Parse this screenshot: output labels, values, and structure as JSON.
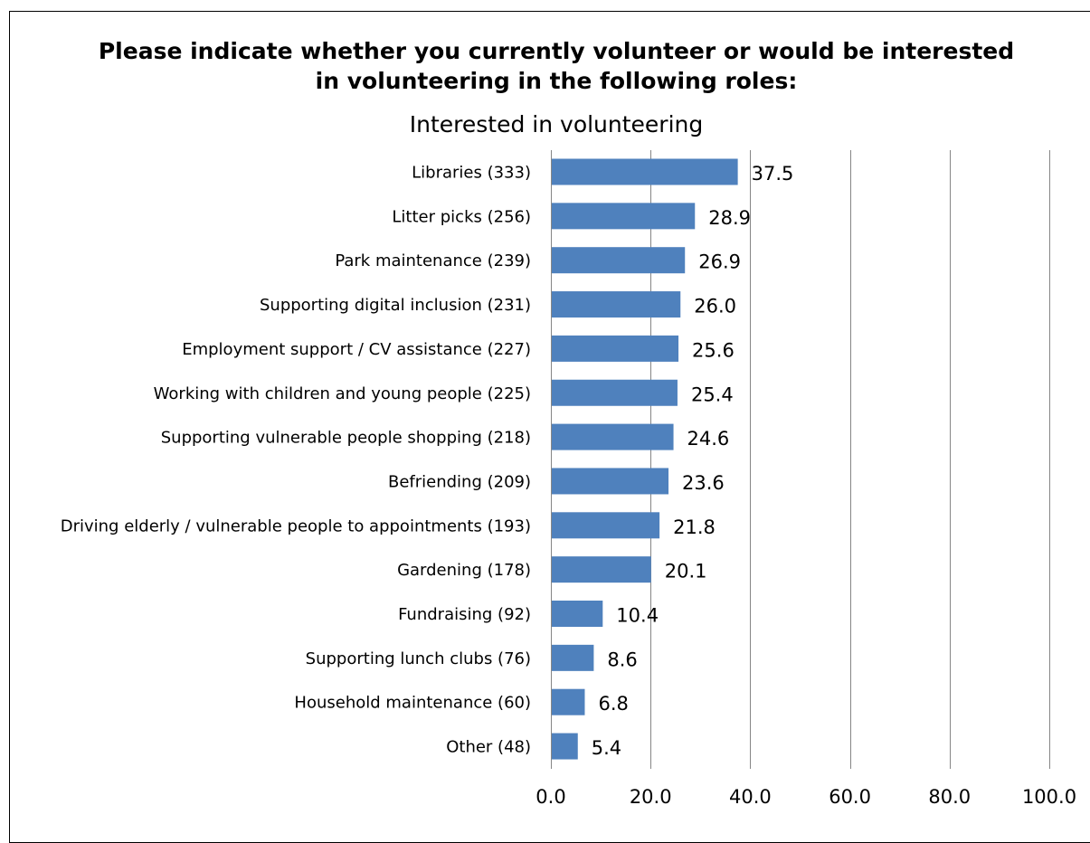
{
  "chart_data": {
    "type": "bar",
    "orientation": "horizontal",
    "title_line1": "Please indicate whether you currently volunteer or would be interested",
    "title_line2": "in volunteering in the following roles:",
    "subtitle": "Interested in volunteering",
    "categories": [
      "Libraries (333)",
      "Litter picks (256)",
      "Park maintenance (239)",
      "Supporting digital inclusion (231)",
      "Employment support / CV assistance (227)",
      "Working with children and young people (225)",
      "Supporting vulnerable people shopping (218)",
      "Befriending (209)",
      "Driving elderly / vulnerable people to appointments (193)",
      "Gardening (178)",
      "Fundraising (92)",
      "Supporting lunch clubs (76)",
      "Household maintenance (60)",
      "Other (48)"
    ],
    "values": [
      37.5,
      28.9,
      26.9,
      26.0,
      25.6,
      25.4,
      24.6,
      23.6,
      21.8,
      20.1,
      10.4,
      8.6,
      6.8,
      5.4
    ],
    "value_labels": [
      "37.5",
      "28.9",
      "26.9",
      "26.0",
      "25.6",
      "25.4",
      "24.6",
      "23.6",
      "21.8",
      "20.1",
      "10.4",
      "8.6",
      "6.8",
      "5.4"
    ],
    "xlim": [
      0,
      100
    ],
    "ticks": [
      0,
      20,
      40,
      60,
      80,
      100
    ],
    "tick_labels": [
      "0.0",
      "20.0",
      "40.0",
      "60.0",
      "80.0",
      "100.0"
    ],
    "grid": true,
    "bar_color": "#4f81bd",
    "grid_color": "#868686",
    "legend": "none"
  }
}
